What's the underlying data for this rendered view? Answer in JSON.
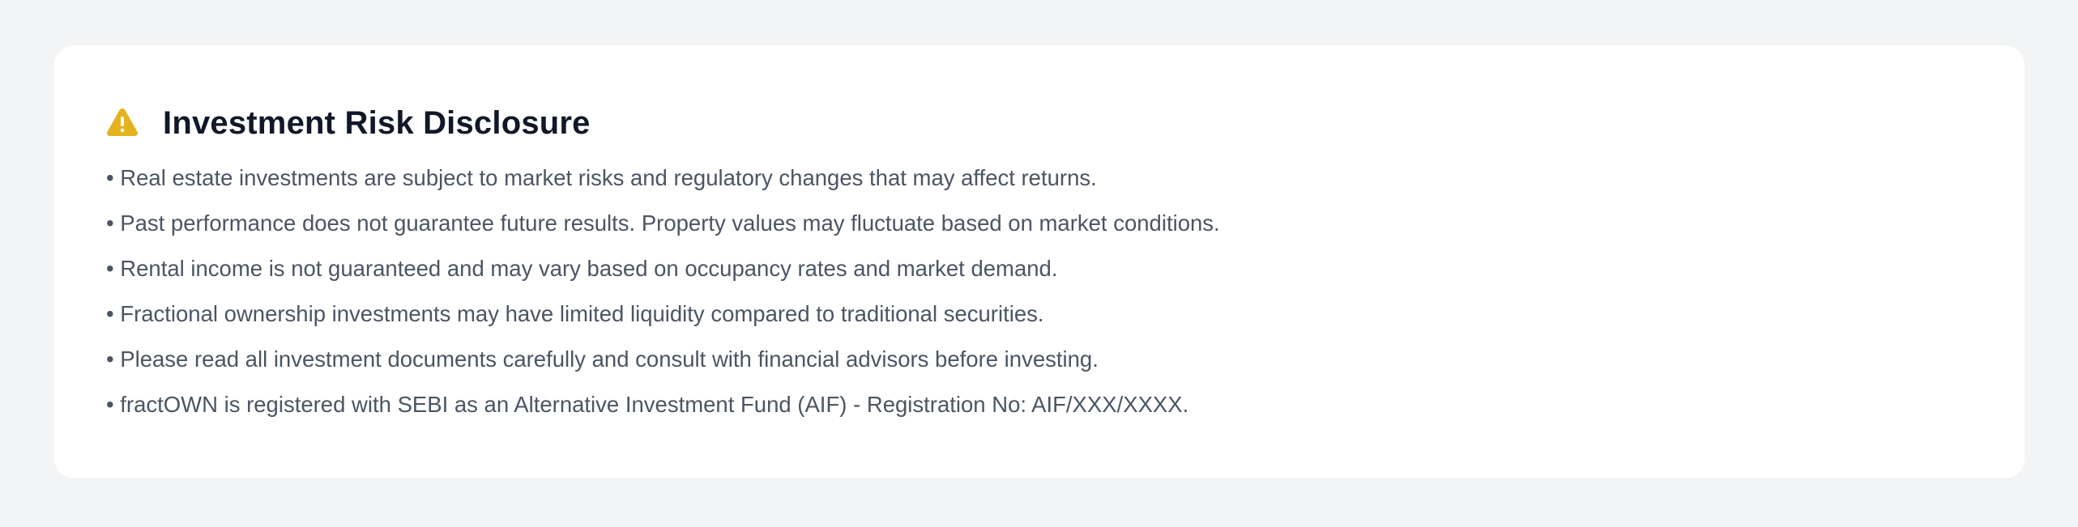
{
  "disclosure": {
    "title": "Investment Risk Disclosure",
    "icon": "warning-triangle-icon",
    "icon_color": "#e3b21e",
    "items": [
      "• Real estate investments are subject to market risks and regulatory changes that may affect returns.",
      "• Past performance does not guarantee future results. Property values may fluctuate based on market conditions.",
      "• Rental income is not guaranteed and may vary based on occupancy rates and market demand.",
      "• Fractional ownership investments may have limited liquidity compared to traditional securities.",
      "• Please read all investment documents carefully and consult with financial advisors before investing.",
      "• fractOWN is registered with SEBI as an Alternative Investment Fund (AIF) - Registration No: AIF/XXX/XXXX."
    ]
  }
}
